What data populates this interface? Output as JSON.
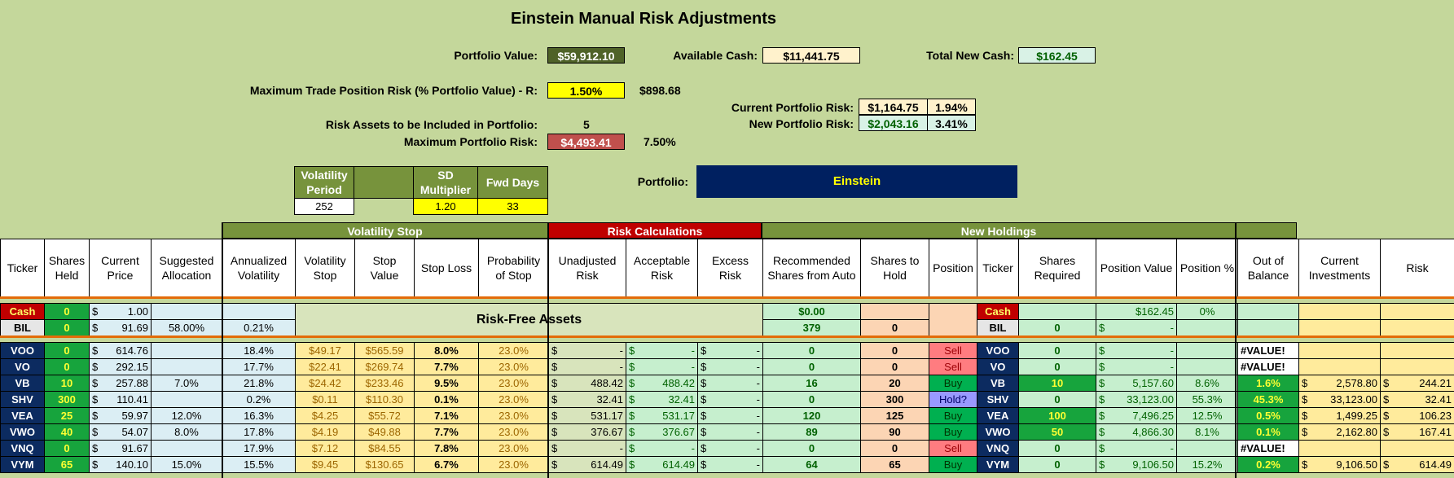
{
  "title": "Einstein Manual Risk Adjustments",
  "summary": {
    "portfolio_value_label": "Portfolio Value:",
    "portfolio_value": "$59,912.10",
    "available_cash_label": "Available Cash:",
    "available_cash": "$11,441.75",
    "total_new_cash_label": "Total New Cash:",
    "total_new_cash": "$162.45",
    "max_trade_risk_label": "Maximum Trade Position Risk (% Portfolio Value) - R:",
    "max_trade_risk_pct": "1.50%",
    "max_trade_risk_amt": "$898.68",
    "current_risk_label": "Current Portfolio Risk:",
    "current_risk_amt": "$1,164.75",
    "current_risk_pct": "1.94%",
    "new_risk_label": "New Portfolio Risk:",
    "new_risk_amt": "$2,043.16",
    "new_risk_pct": "3.41%",
    "risk_assets_label": "Risk Assets to be Included in Portfolio:",
    "risk_assets_count": "5",
    "max_portfolio_risk_label": "Maximum Portfolio Risk:",
    "max_portfolio_risk_amt": "$4,493.41",
    "max_portfolio_risk_pct": "7.50%",
    "portfolio_label": "Portfolio:",
    "portfolio_name": "Einstein"
  },
  "params": {
    "vol_period_label": "Volatility Period",
    "vol_period": "252",
    "sd_mult_label": "SD Multiplier",
    "sd_mult": "1.20",
    "fwd_days_label": "Fwd Days",
    "fwd_days": "33"
  },
  "sections": {
    "volatility_stop": "Volatility Stop",
    "risk_calculations": "Risk Calculations",
    "new_holdings": "New Holdings",
    "risk_free_assets": "Risk-Free Assets"
  },
  "columns": [
    "Ticker",
    "Shares Held",
    "Current Price",
    "Suggested Allocation",
    "Annualized Volatility",
    "Volatility Stop",
    "Stop Value",
    "Stop Loss",
    "Probability of Stop",
    "Unadjusted Risk",
    "Acceptable Risk",
    "Excess Risk",
    "Recommended Shares from Auto",
    "Shares to Hold",
    "Position",
    "Ticker",
    "Shares Required",
    "Position Value",
    "Position %",
    "Out of Balance",
    "Current Investments",
    "Risk"
  ],
  "cash_row": {
    "ticker": "Cash",
    "shares": "0",
    "price": "1.00",
    "rec": "$0.00",
    "ticker2": "Cash",
    "posval": "$162.45",
    "pospct": "0%"
  },
  "bil_row": {
    "ticker": "BIL",
    "shares": "0",
    "price": "91.69",
    "alloc": "58.00%",
    "vol": "0.21%",
    "rec": "379",
    "hold": "0",
    "ticker2": "BIL",
    "req": "0",
    "posval": "-"
  },
  "rows": [
    {
      "ticker": "VOO",
      "shares": "0",
      "price": "614.76",
      "alloc": "",
      "vol": "18.4%",
      "vstop": "$49.17",
      "sval": "$565.59",
      "sloss": "8.0%",
      "prob": "23.0%",
      "unadj": "-",
      "accept": "-",
      "excess": "-",
      "rec": "0",
      "hold": "0",
      "pos": "Sell",
      "req": "0",
      "posval": "-",
      "pospct": "",
      "oob": "#VALUE!",
      "curinv": "",
      "risk": ""
    },
    {
      "ticker": "VO",
      "shares": "0",
      "price": "292.15",
      "alloc": "",
      "vol": "17.7%",
      "vstop": "$22.41",
      "sval": "$269.74",
      "sloss": "7.7%",
      "prob": "23.0%",
      "unadj": "-",
      "accept": "-",
      "excess": "-",
      "rec": "0",
      "hold": "0",
      "pos": "Sell",
      "req": "0",
      "posval": "-",
      "pospct": "",
      "oob": "#VALUE!",
      "curinv": "",
      "risk": ""
    },
    {
      "ticker": "VB",
      "shares": "10",
      "price": "257.88",
      "alloc": "7.0%",
      "vol": "21.8%",
      "vstop": "$24.42",
      "sval": "$233.46",
      "sloss": "9.5%",
      "prob": "23.0%",
      "unadj": "488.42",
      "accept": "488.42",
      "excess": "-",
      "rec": "16",
      "hold": "20",
      "pos": "Buy",
      "req": "10",
      "posval": "5,157.60",
      "pospct": "8.6%",
      "oob": "1.6%",
      "curinv": "2,578.80",
      "risk": "244.21"
    },
    {
      "ticker": "SHV",
      "shares": "300",
      "price": "110.41",
      "alloc": "",
      "vol": "0.2%",
      "vstop": "$0.11",
      "sval": "$110.30",
      "sloss": "0.1%",
      "prob": "23.0%",
      "unadj": "32.41",
      "accept": "32.41",
      "excess": "-",
      "rec": "0",
      "hold": "300",
      "pos": "Hold?",
      "req": "0",
      "posval": "33,123.00",
      "pospct": "55.3%",
      "oob": "45.3%",
      "curinv": "33,123.00",
      "risk": "32.41"
    },
    {
      "ticker": "VEA",
      "shares": "25",
      "price": "59.97",
      "alloc": "12.0%",
      "vol": "16.3%",
      "vstop": "$4.25",
      "sval": "$55.72",
      "sloss": "7.1%",
      "prob": "23.0%",
      "unadj": "531.17",
      "accept": "531.17",
      "excess": "-",
      "rec": "120",
      "hold": "125",
      "pos": "Buy",
      "req": "100",
      "posval": "7,496.25",
      "pospct": "12.5%",
      "oob": "0.5%",
      "curinv": "1,499.25",
      "risk": "106.23"
    },
    {
      "ticker": "VWO",
      "shares": "40",
      "price": "54.07",
      "alloc": "8.0%",
      "vol": "17.8%",
      "vstop": "$4.19",
      "sval": "$49.88",
      "sloss": "7.7%",
      "prob": "23.0%",
      "unadj": "376.67",
      "accept": "376.67",
      "excess": "-",
      "rec": "89",
      "hold": "90",
      "pos": "Buy",
      "req": "50",
      "posval": "4,866.30",
      "pospct": "8.1%",
      "oob": "0.1%",
      "curinv": "2,162.80",
      "risk": "167.41"
    },
    {
      "ticker": "VNQ",
      "shares": "0",
      "price": "91.67",
      "alloc": "",
      "vol": "17.9%",
      "vstop": "$7.12",
      "sval": "$84.55",
      "sloss": "7.8%",
      "prob": "23.0%",
      "unadj": "-",
      "accept": "-",
      "excess": "-",
      "rec": "0",
      "hold": "0",
      "pos": "Sell",
      "req": "0",
      "posval": "-",
      "pospct": "",
      "oob": "#VALUE!",
      "curinv": "",
      "risk": ""
    },
    {
      "ticker": "VYM",
      "shares": "65",
      "price": "140.10",
      "alloc": "15.0%",
      "vol": "15.5%",
      "vstop": "$9.45",
      "sval": "$130.65",
      "sloss": "6.7%",
      "prob": "23.0%",
      "unadj": "614.49",
      "accept": "614.49",
      "excess": "-",
      "rec": "64",
      "hold": "65",
      "pos": "Buy",
      "req": "0",
      "posval": "9,106.50",
      "pospct": "15.2%",
      "oob": "0.2%",
      "curinv": "9,106.50",
      "risk": "614.49"
    }
  ],
  "colors": {
    "background": "#c4d79b",
    "navy": "#0c2b60",
    "red": "#c00000",
    "olive": "#77933c",
    "orange": "#e36c09"
  }
}
